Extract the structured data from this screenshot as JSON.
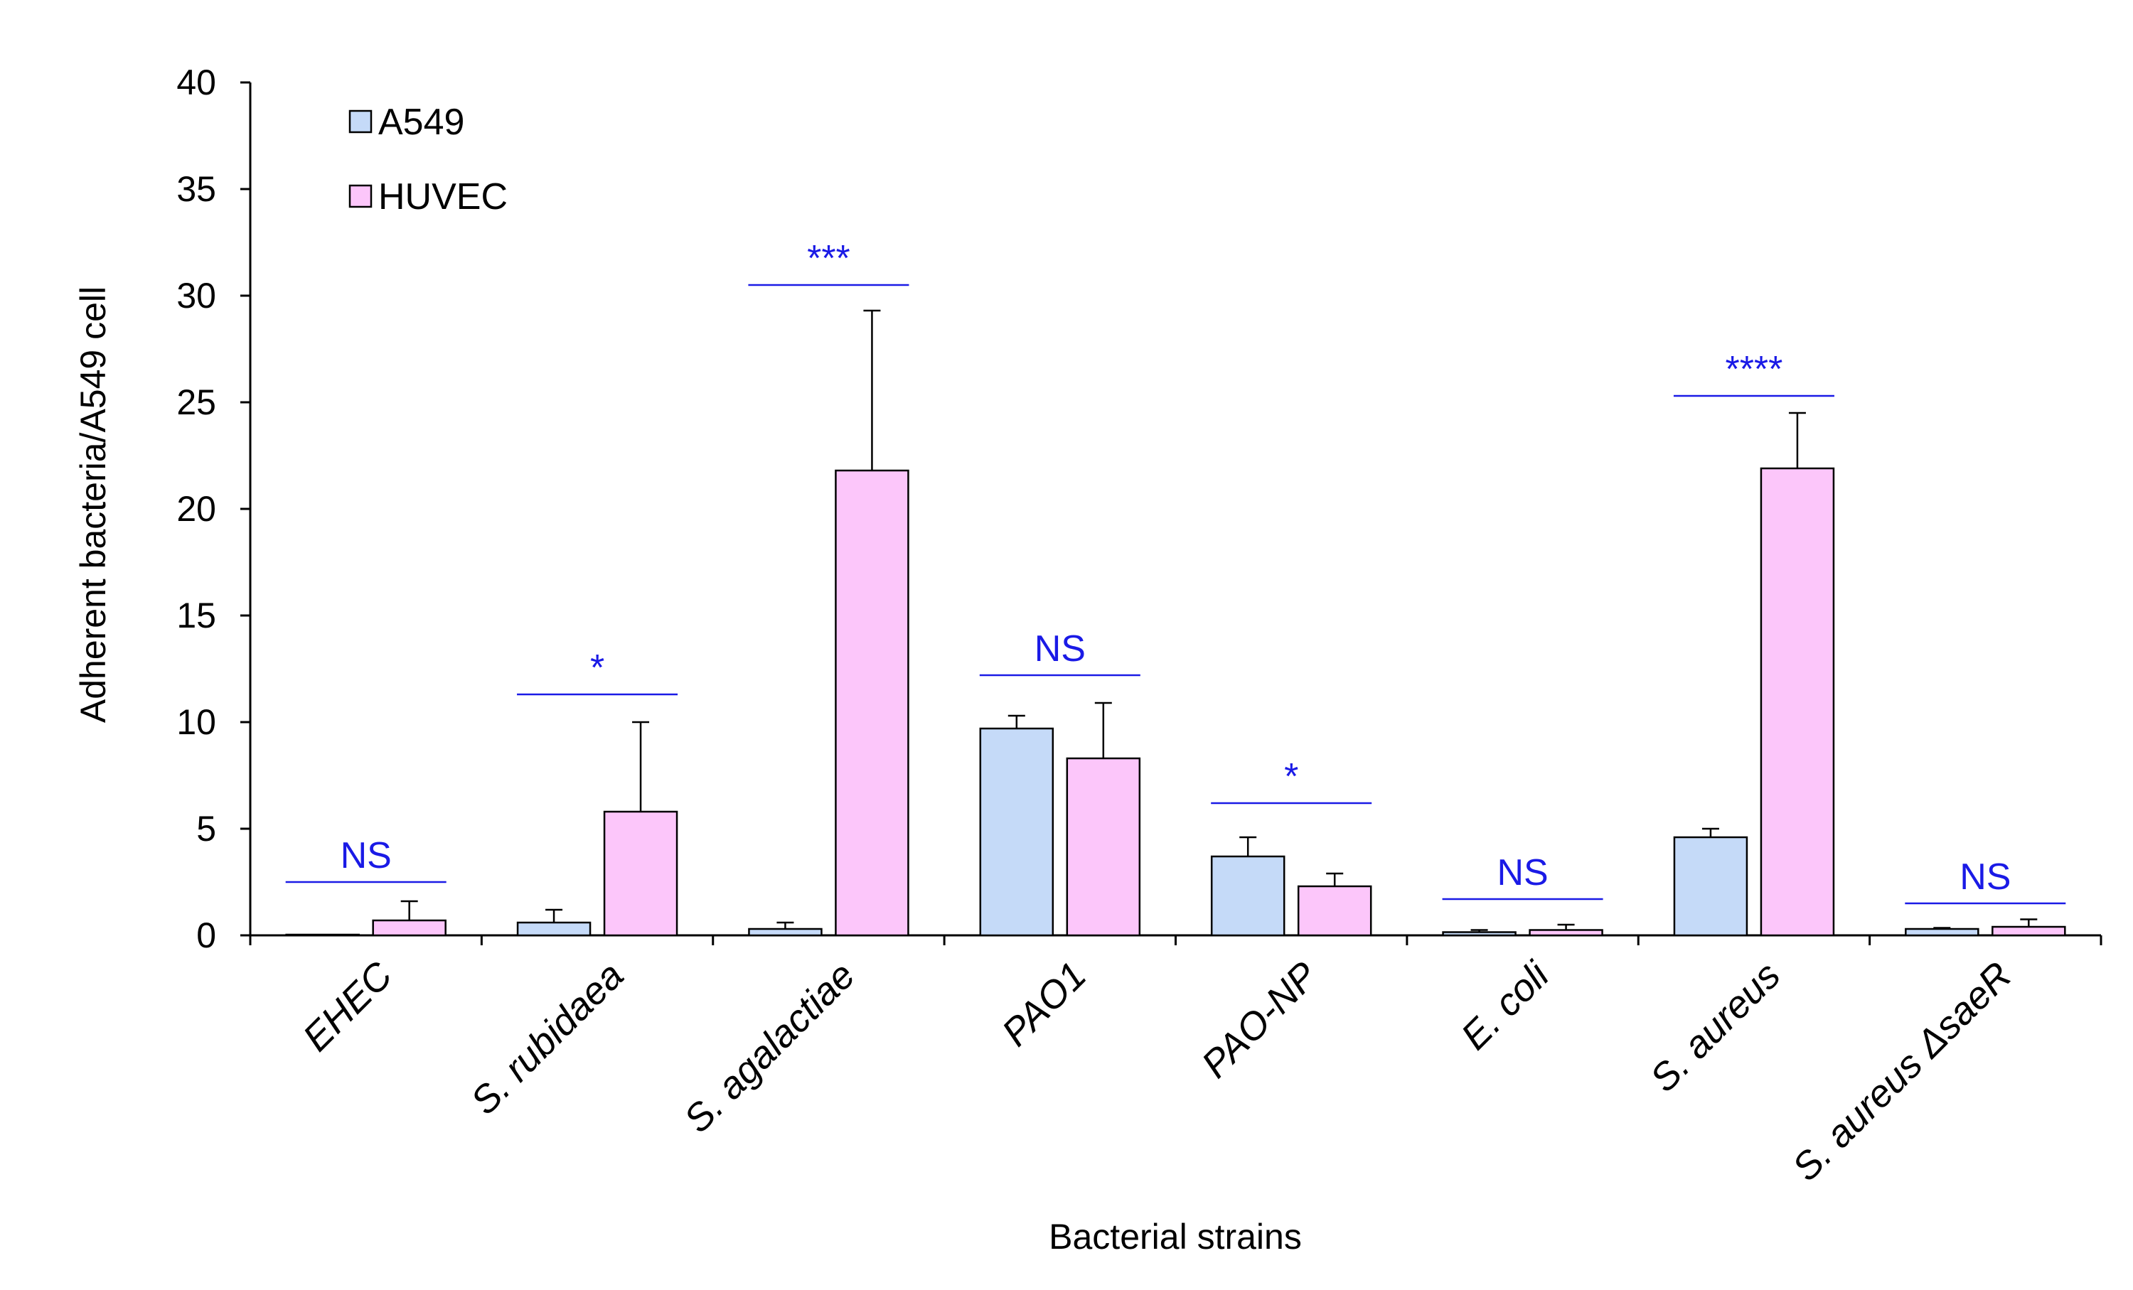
{
  "chart_data": {
    "type": "bar",
    "title": "",
    "xlabel": "Bacterial strains",
    "ylabel": "Adherent bacteria/A549 cell",
    "ylim": [
      0,
      40
    ],
    "yticks": [
      0,
      5,
      10,
      15,
      20,
      25,
      30,
      35,
      40
    ],
    "categories": [
      "EHEC",
      "S. rubidaea",
      "S. agalactiae",
      "PAO1",
      "PAO-NP",
      "E. coli",
      "S. aureus",
      "S. aureus ΔsaeR"
    ],
    "series": [
      {
        "name": "A549",
        "color": "#c5daf8",
        "values": [
          0.0,
          0.6,
          0.3,
          9.7,
          3.7,
          0.15,
          4.6,
          0.3
        ],
        "errors": [
          0.0,
          0.6,
          0.3,
          0.6,
          0.9,
          0.1,
          0.4,
          0.05
        ]
      },
      {
        "name": "HUVEC",
        "color": "#fcc6fa",
        "values": [
          0.7,
          5.8,
          21.8,
          8.3,
          2.3,
          0.25,
          21.9,
          0.4
        ],
        "errors": [
          0.9,
          4.2,
          7.5,
          2.6,
          0.6,
          0.25,
          2.6,
          0.35
        ]
      }
    ],
    "significance": [
      {
        "label": "NS",
        "y": 2.5
      },
      {
        "label": "*",
        "y": 11.3
      },
      {
        "label": "***",
        "y": 30.5
      },
      {
        "label": "NS",
        "y": 12.2
      },
      {
        "label": "*",
        "y": 6.2
      },
      {
        "label": "NS",
        "y": 1.7
      },
      {
        "label": "****",
        "y": 25.3
      },
      {
        "label": "NS",
        "y": 1.5
      }
    ],
    "significance_color": "#1a1ae6",
    "legend_position": "top-left"
  }
}
